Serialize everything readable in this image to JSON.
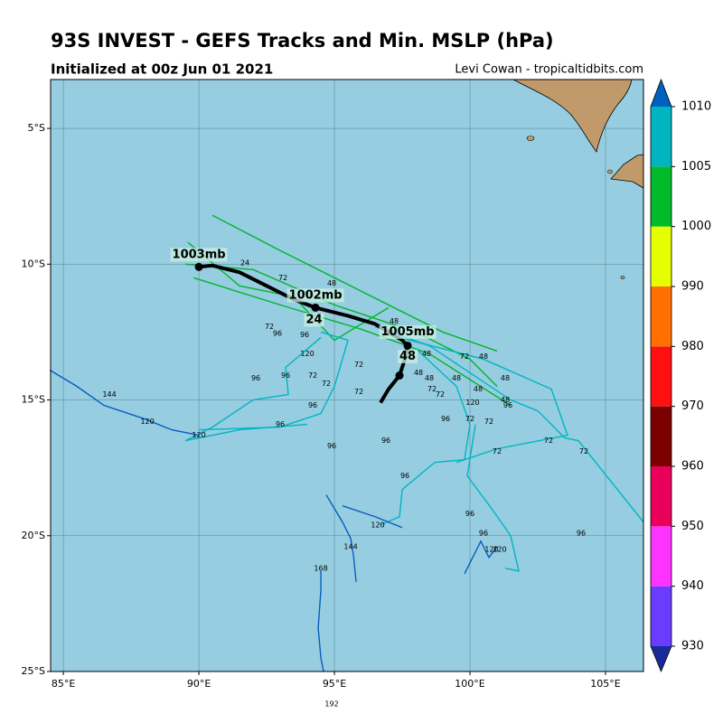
{
  "chart_data": {
    "type": "track-map",
    "title": "93S INVEST - GEFS Tracks and Min. MSLP (hPa)",
    "subtitle": "Initialized at 00z Jun 01 2021",
    "credit": "Levi Cowan - tropicaltidbits.com",
    "xlim": [
      84.53,
      106.4
    ],
    "ylim": [
      -25,
      -3.2
    ],
    "xticks": [
      {
        "value": 85,
        "label": "85°E"
      },
      {
        "value": 90,
        "label": "90°E"
      },
      {
        "value": 95,
        "label": "95°E"
      },
      {
        "value": 100,
        "label": "100°E"
      },
      {
        "value": 105,
        "label": "105°E"
      }
    ],
    "yticks": [
      {
        "value": -5,
        "label": "5°S"
      },
      {
        "value": -10,
        "label": "10°S"
      },
      {
        "value": -15,
        "label": "15°S"
      },
      {
        "value": -20,
        "label": "20°S"
      },
      {
        "value": -25,
        "label": "25°S"
      }
    ],
    "grid": true,
    "colorbar": {
      "ticks": [
        930,
        940,
        950,
        960,
        970,
        980,
        990,
        1000,
        1005,
        1010
      ],
      "colors": [
        "#6a3cff",
        "#ff33ff",
        "#e8005a",
        "#7a0000",
        "#ff1010",
        "#ff7000",
        "#e6ff00",
        "#00bb2a",
        "#00b5c0"
      ],
      "under": "#1a2a9a",
      "over": "#0060c0"
    },
    "mean_track": {
      "color": "#000000",
      "x": [
        90.0,
        90.5,
        91.5,
        92.5,
        93.5,
        94.3,
        95.5,
        96.5,
        97.5,
        97.7,
        97.6,
        97.4,
        97.0,
        96.7
      ],
      "y": [
        -10.1,
        -10.05,
        -10.3,
        -10.8,
        -11.3,
        -11.6,
        -11.9,
        -12.2,
        -12.8,
        -13.0,
        -13.5,
        -14.1,
        -14.6,
        -15.1
      ],
      "dots": [
        0,
        5,
        9,
        11
      ],
      "labels": [
        {
          "text": "1003mb",
          "x": 90.0,
          "y": -9.65
        },
        {
          "text": "1002mb",
          "x": 94.3,
          "y": -11.15
        },
        {
          "text": "24",
          "x": 94.25,
          "y": -12.05
        },
        {
          "text": "1005mb",
          "x": 97.7,
          "y": -12.5
        },
        {
          "text": "48",
          "x": 97.7,
          "y": -13.4
        }
      ]
    },
    "series": [
      {
        "color": "#00b52a",
        "x": [
          89.5,
          92.0,
          95.0,
          98.0,
          100.0,
          101.0
        ],
        "y": [
          -10.0,
          -10.2,
          -11.5,
          -12.5,
          -13.5,
          -14.5
        ]
      },
      {
        "color": "#00b52a",
        "x": [
          90.5,
          93.0,
          96.0,
          99.0,
          101.0
        ],
        "y": [
          -8.2,
          -9.5,
          -11.0,
          -12.5,
          -13.2
        ]
      },
      {
        "color": "#00b52a",
        "x": [
          89.8,
          93.0,
          96.0,
          98.5,
          101.5
        ],
        "y": [
          -10.5,
          -11.5,
          -12.4,
          -13.3,
          -15.2
        ]
      },
      {
        "color": "#00b52a",
        "x": [
          89.6,
          91.5,
          93.5,
          95.0,
          97.0
        ],
        "y": [
          -9.2,
          -10.8,
          -11.2,
          -12.8,
          -11.6
        ]
      },
      {
        "color": "#00b5c0",
        "x": [
          96.5,
          98.5,
          101.5,
          102.5,
          103.5,
          104.0,
          106.4
        ],
        "y": [
          -12.3,
          -13.0,
          -15.0,
          -15.4,
          -16.4,
          -16.5,
          -19.5
        ]
      },
      {
        "color": "#00b5c0",
        "x": [
          98.0,
          99.5,
          100.0,
          99.8,
          98.7,
          97.5,
          97.4,
          96.7
        ],
        "y": [
          -13.1,
          -14.5,
          -15.9,
          -17.2,
          -17.3,
          -18.3,
          -19.3,
          -19.6
        ]
      },
      {
        "color": "#00b5c0",
        "x": [
          94.5,
          93.2,
          93.3,
          92.0,
          90.5,
          89.5,
          91.5,
          94.0
        ],
        "y": [
          -12.7,
          -13.8,
          -14.8,
          -15.0,
          -16.0,
          -16.5,
          -16.1,
          -15.9
        ]
      },
      {
        "color": "#00b5c0",
        "x": [
          100.2,
          99.9,
          100.8,
          101.5,
          101.8,
          101.3
        ],
        "y": [
          -15.9,
          -17.8,
          -19.0,
          -20.0,
          -21.3,
          -21.2
        ]
      },
      {
        "color": "#00b5c0",
        "x": [
          94.5,
          95.5,
          95.0,
          94.5,
          93.0,
          90.0
        ],
        "y": [
          -12.5,
          -12.8,
          -14.5,
          -15.5,
          -16.0,
          -16.1
        ]
      },
      {
        "color": "#00b5c0",
        "x": [
          97.0,
          100.5,
          103.0,
          103.6,
          101.0,
          99.5
        ],
        "y": [
          -12.6,
          -13.5,
          -14.6,
          -16.3,
          -16.8,
          -17.3
        ]
      },
      {
        "color": "#0a5cc0",
        "x": [
          84.5,
          85.5,
          86.5,
          88.0,
          89.0,
          90.0
        ],
        "y": [
          -13.9,
          -14.5,
          -15.2,
          -15.7,
          -16.1,
          -16.3
        ]
      },
      {
        "color": "#0a5cc0",
        "x": [
          94.7,
          95.3,
          95.6,
          95.7,
          95.8
        ],
        "y": [
          -18.5,
          -19.5,
          -20.1,
          -20.7,
          -21.7
        ]
      },
      {
        "color": "#0a5cc0",
        "x": [
          95.3,
          96.5,
          97.5
        ],
        "y": [
          -18.9,
          -19.3,
          -19.7
        ]
      },
      {
        "color": "#0a5cc0",
        "x": [
          94.5,
          94.5,
          94.4,
          94.5,
          94.6
        ],
        "y": [
          -21.3,
          -22.0,
          -23.4,
          -24.5,
          -25.0
        ]
      },
      {
        "color": "#0a5cc0",
        "x": [
          99.8,
          100.4,
          100.7,
          101.0
        ],
        "y": [
          -21.4,
          -20.2,
          -20.8,
          -20.4
        ]
      }
    ],
    "hour_labels": [
      {
        "text": "24",
        "x": 91.7,
        "y": -9.95
      },
      {
        "text": "72",
        "x": 93.1,
        "y": -10.5
      },
      {
        "text": "48",
        "x": 94.9,
        "y": -10.7
      },
      {
        "text": "72",
        "x": 92.6,
        "y": -12.3
      },
      {
        "text": "96",
        "x": 92.9,
        "y": -12.55
      },
      {
        "text": "96",
        "x": 93.9,
        "y": -12.6
      },
      {
        "text": "120",
        "x": 94.0,
        "y": -13.3
      },
      {
        "text": "72",
        "x": 94.2,
        "y": -14.1
      },
      {
        "text": "96",
        "x": 92.1,
        "y": -14.2
      },
      {
        "text": "96",
        "x": 93.2,
        "y": -14.1
      },
      {
        "text": "72",
        "x": 94.7,
        "y": -14.4
      },
      {
        "text": "72",
        "x": 95.9,
        "y": -14.7
      },
      {
        "text": "72",
        "x": 95.9,
        "y": -13.7
      },
      {
        "text": "96",
        "x": 94.2,
        "y": -15.2
      },
      {
        "text": "96",
        "x": 93.0,
        "y": -15.9
      },
      {
        "text": "96",
        "x": 94.9,
        "y": -16.7
      },
      {
        "text": "144",
        "x": 86.7,
        "y": -14.8
      },
      {
        "text": "120",
        "x": 88.1,
        "y": -15.8
      },
      {
        "text": "120",
        "x": 90.0,
        "y": -16.3
      },
      {
        "text": "96",
        "x": 96.9,
        "y": -16.5
      },
      {
        "text": "96",
        "x": 97.6,
        "y": -17.8
      },
      {
        "text": "72",
        "x": 99.8,
        "y": -13.4
      },
      {
        "text": "48",
        "x": 100.5,
        "y": -13.4
      },
      {
        "text": "48",
        "x": 97.2,
        "y": -12.1
      },
      {
        "text": "48",
        "x": 98.4,
        "y": -13.3
      },
      {
        "text": "48",
        "x": 98.1,
        "y": -14.0
      },
      {
        "text": "48",
        "x": 98.5,
        "y": -14.2
      },
      {
        "text": "48",
        "x": 99.5,
        "y": -14.2
      },
      {
        "text": "48",
        "x": 100.3,
        "y": -14.6
      },
      {
        "text": "72",
        "x": 98.6,
        "y": -14.6
      },
      {
        "text": "72",
        "x": 98.9,
        "y": -14.8
      },
      {
        "text": "120",
        "x": 100.1,
        "y": -15.1
      },
      {
        "text": "96",
        "x": 99.1,
        "y": -15.7
      },
      {
        "text": "72",
        "x": 100.0,
        "y": -15.7
      },
      {
        "text": "72",
        "x": 100.7,
        "y": -15.8
      },
      {
        "text": "48",
        "x": 101.3,
        "y": -14.2
      },
      {
        "text": "48",
        "x": 101.3,
        "y": -15.0
      },
      {
        "text": "96",
        "x": 101.4,
        "y": -15.2
      },
      {
        "text": "72",
        "x": 102.9,
        "y": -16.5
      },
      {
        "text": "72",
        "x": 101.0,
        "y": -16.9
      },
      {
        "text": "72",
        "x": 104.2,
        "y": -16.9
      },
      {
        "text": "96",
        "x": 100.0,
        "y": -19.2
      },
      {
        "text": "96",
        "x": 100.5,
        "y": -19.9
      },
      {
        "text": "96",
        "x": 104.1,
        "y": -19.9
      },
      {
        "text": "120",
        "x": 96.6,
        "y": -19.6
      },
      {
        "text": "144",
        "x": 95.6,
        "y": -20.4
      },
      {
        "text": "168",
        "x": 94.5,
        "y": -21.2
      },
      {
        "text": "120",
        "x": 100.8,
        "y": -20.5
      },
      {
        "text": "120",
        "x": 101.1,
        "y": -20.5
      },
      {
        "text": "192",
        "x": 94.9,
        "y": -26.2
      }
    ]
  }
}
